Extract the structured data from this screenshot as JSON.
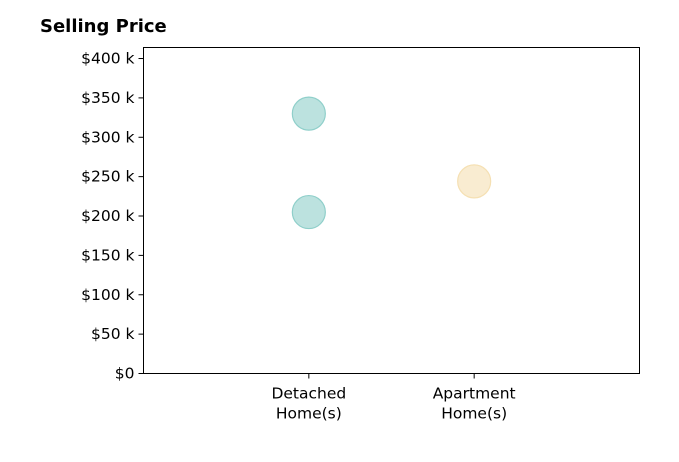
{
  "chart_data": {
    "type": "scatter",
    "title": "Selling Price",
    "xlabel": "",
    "ylabel": "",
    "categories": [
      [
        "Detached",
        "Home(s)"
      ],
      [
        "Apartment",
        "Home(s)"
      ]
    ],
    "y_tick_labels": [
      "$0",
      "$50 k",
      "$100 k",
      "$150 k",
      "$200 k",
      "$250 k",
      "$300 k",
      "$350 k",
      "$400 k"
    ],
    "y_ticks": [
      0,
      50,
      100,
      150,
      200,
      250,
      300,
      350,
      400
    ],
    "ylim": [
      0,
      414
    ],
    "xlim": [
      -1,
      2
    ],
    "grid": false,
    "series": [
      {
        "category": "Detached Home(s)",
        "color": "#8fcfca",
        "points": [
          {
            "x": 0,
            "y": 330
          },
          {
            "x": 0,
            "y": 205
          }
        ]
      },
      {
        "category": "Apartment Home(s)",
        "color": "#f5e0b3",
        "points": [
          {
            "x": 1,
            "y": 244
          }
        ]
      }
    ]
  }
}
